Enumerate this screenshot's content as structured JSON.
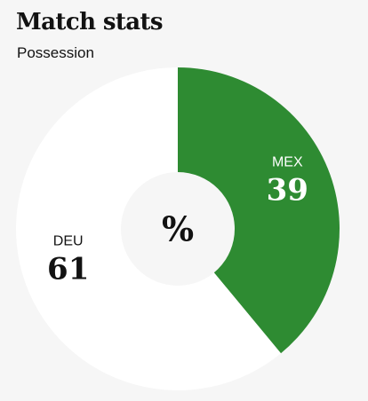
{
  "header": {
    "title": "Match stats",
    "subtitle": "Possession"
  },
  "chart_data": {
    "type": "pie",
    "title": "Match stats",
    "subtitle": "Possession",
    "center_label": "%",
    "slices": [
      {
        "label": "MEX",
        "value": 39,
        "color": "#2e8b32",
        "text_color": "#ffffff"
      },
      {
        "label": "DEU",
        "value": 61,
        "color": "#ffffff",
        "text_color": "#121212"
      }
    ]
  }
}
